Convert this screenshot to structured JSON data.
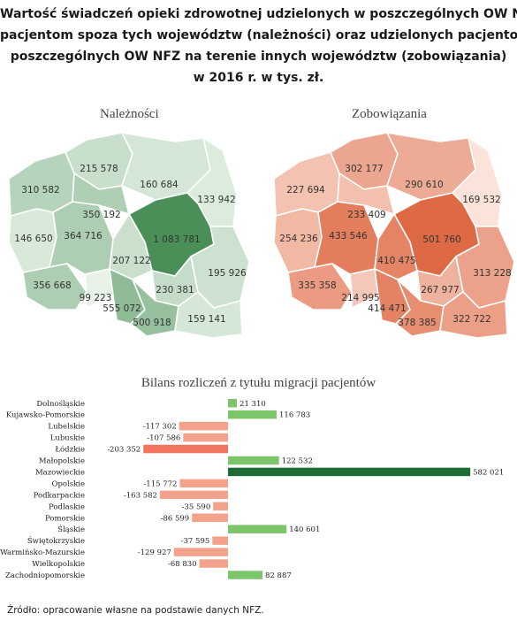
{
  "title_lines": [
    "Wartość świadczeń opieki zdrowotnej udzielonych w poszczególnych OW NFZ",
    "pacjentom spoza tych województw (należności) oraz udzielonych pacjentom",
    "poszczególnych OW NFZ na terenie innych województw (zobowiązania)",
    "w 2016 r. w tys. zł."
  ],
  "source": "Źródło: opracowanie własne na podstawie danych NFZ.",
  "colors": {
    "positive": "#7dc56a",
    "positive_max": "#1e6b34",
    "negative": "#f3a28c",
    "negative_max": "#ef7560",
    "green_low": "#e8f3e8",
    "green_high": "#4a8f58",
    "orange_low": "#fbe3d9",
    "orange_high": "#de6a45"
  },
  "maps": [
    {
      "title": "Należności",
      "regions": [
        {
          "name": "Zachodniopomorskie",
          "label": "310 582"
        },
        {
          "name": "Pomorskie",
          "label": "215 578"
        },
        {
          "name": "Warmińsko-Mazurskie",
          "label": "160 684"
        },
        {
          "name": "Podlaskie",
          "label": "133 942"
        },
        {
          "name": "Lubuskie",
          "label": "146 650"
        },
        {
          "name": "Wielkopolskie",
          "label": "364 716"
        },
        {
          "name": "Kujawsko-Pomorskie",
          "label": "350 192"
        },
        {
          "name": "Mazowieckie",
          "label": "1 083 781"
        },
        {
          "name": "Łódzkie",
          "label": "207 122"
        },
        {
          "name": "Lubelskie",
          "label": "195 926"
        },
        {
          "name": "Dolnośląskie",
          "label": "356 668"
        },
        {
          "name": "Opolskie",
          "label": "99 223"
        },
        {
          "name": "Świętokrzyskie",
          "label": "230 381"
        },
        {
          "name": "Śląskie",
          "label": "555 072"
        },
        {
          "name": "Małopolskie",
          "label": "500 918"
        },
        {
          "name": "Podkarpackie",
          "label": "159 141"
        }
      ]
    },
    {
      "title": "Zobowiązania",
      "regions": [
        {
          "name": "Zachodniopomorskie",
          "label": "227 694"
        },
        {
          "name": "Pomorskie",
          "label": "302 177"
        },
        {
          "name": "Warmińsko-Mazurskie",
          "label": "290 610"
        },
        {
          "name": "Podlaskie",
          "label": "169 532"
        },
        {
          "name": "Lubuskie",
          "label": "254 236"
        },
        {
          "name": "Wielkopolskie",
          "label": "433 546"
        },
        {
          "name": "Kujawsko-Pomorskie",
          "label": "233 409"
        },
        {
          "name": "Mazowieckie",
          "label": "501 760"
        },
        {
          "name": "Łódzkie",
          "label": "410 475"
        },
        {
          "name": "Lubelskie",
          "label": "313 228"
        },
        {
          "name": "Dolnośląskie",
          "label": "335 358"
        },
        {
          "name": "Opolskie",
          "label": "214 995"
        },
        {
          "name": "Świętokrzyskie",
          "label": "267 977"
        },
        {
          "name": "Śląskie",
          "label": "414 471"
        },
        {
          "name": "Małopolskie",
          "label": "378 385"
        },
        {
          "name": "Podkarpackie",
          "label": "322 722"
        }
      ]
    }
  ],
  "chart_data": {
    "type": "bar",
    "orientation": "horizontal",
    "title": "Bilans rozliczeń z tytułu migracji pacjentów",
    "categories": [
      "Dolnośląskie",
      "Kujawsko-Pomorskie",
      "Lubelskie",
      "Lubuskie",
      "Łódzkie",
      "Małopolskie",
      "Mazowieckie",
      "Opolskie",
      "Podkarpackie",
      "Podlaskie",
      "Pomorskie",
      "Śląskie",
      "Świętokrzyskie",
      "Warmińsko-Mazurskie",
      "Wielkopolskie",
      "Zachodniopomorskie"
    ],
    "values": [
      21310,
      116783,
      -117302,
      -107586,
      -203352,
      122532,
      582021,
      -115772,
      -163582,
      -35590,
      -86599,
      140601,
      -37595,
      -129927,
      -68830,
      82887
    ],
    "value_labels": [
      "21 310",
      "116 783",
      "-117 302",
      "-107 586",
      "-203 352",
      "122 532",
      "582 021",
      "-115 772",
      "-163 582",
      "-35 590",
      "-86 599",
      "140 601",
      "-37 595",
      "-129 927",
      "-68 830",
      "82 887"
    ],
    "xlim": [
      -210000,
      590000
    ],
    "grid": false,
    "legend": "none"
  }
}
